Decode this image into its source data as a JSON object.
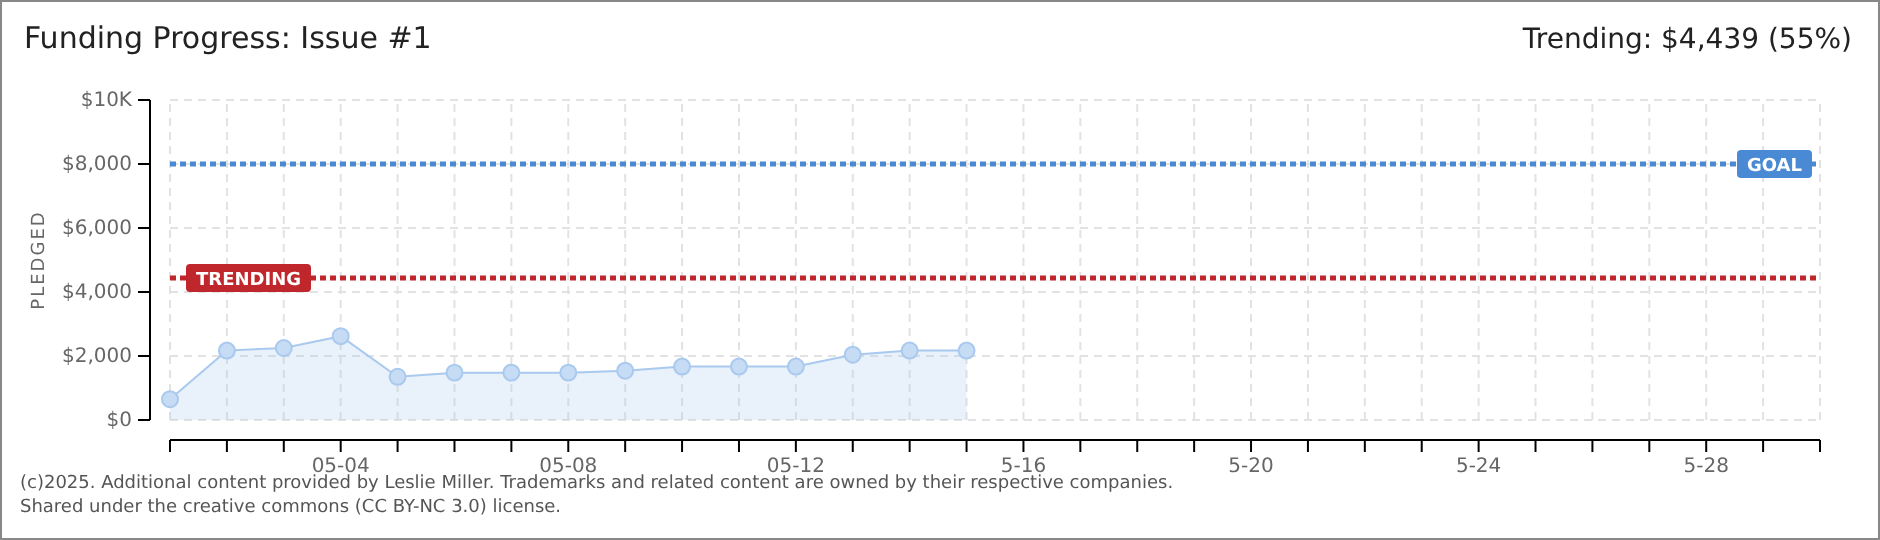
{
  "chart_data": {
    "type": "area",
    "title": "Funding Progress: Issue #1",
    "subtitle": "Trending: $4,439 (55%)",
    "ylabel": "PLEDGED",
    "x": [
      "2025-05-01",
      "2025-05-02",
      "2025-05-03",
      "2025-05-04",
      "2025-05-05",
      "2025-05-06",
      "2025-05-07",
      "2025-05-08",
      "2025-05-09",
      "2025-05-10",
      "2025-05-11",
      "2025-05-12",
      "2025-05-13",
      "2025-05-14",
      "2025-05-15"
    ],
    "series": [
      {
        "color": "#a9c9ee",
        "values": [
          650,
          2170,
          2250,
          2620,
          1350,
          1480,
          1480,
          1480,
          1540,
          1670,
          1670,
          1670,
          2040,
          2170,
          2170
        ]
      }
    ],
    "xlim": [
      "2025-05-01",
      "2025-05-30"
    ],
    "xticks": [
      {
        "value": "2025-05-01",
        "label": null
      },
      {
        "value": "2025-05-02",
        "label": null
      },
      {
        "value": "2025-05-03",
        "label": null
      },
      {
        "value": "2025-05-04",
        "label": "05-04"
      },
      {
        "value": "2025-05-05",
        "label": null
      },
      {
        "value": "2025-05-06",
        "label": null
      },
      {
        "value": "2025-05-07",
        "label": null
      },
      {
        "value": "2025-05-08",
        "label": "05-08"
      },
      {
        "value": "2025-05-09",
        "label": null
      },
      {
        "value": "2025-05-10",
        "label": null
      },
      {
        "value": "2025-05-11",
        "label": null
      },
      {
        "value": "2025-05-12",
        "label": "05-12"
      },
      {
        "value": "2025-05-13",
        "label": null
      },
      {
        "value": "2025-05-14",
        "label": null
      },
      {
        "value": "2025-05-15",
        "label": null
      },
      {
        "value": "2025-05-16",
        "label": "5-16"
      },
      {
        "value": "2025-05-17",
        "label": null
      },
      {
        "value": "2025-05-18",
        "label": null
      },
      {
        "value": "2025-05-19",
        "label": null
      },
      {
        "value": "2025-05-20",
        "label": "5-20"
      },
      {
        "value": "2025-05-21",
        "label": null
      },
      {
        "value": "2025-05-22",
        "label": null
      },
      {
        "value": "2025-05-23",
        "label": null
      },
      {
        "value": "2025-05-24",
        "label": "5-24"
      },
      {
        "value": "2025-05-25",
        "label": null
      },
      {
        "value": "2025-05-26",
        "label": null
      },
      {
        "value": "2025-05-27",
        "label": null
      },
      {
        "value": "2025-05-28",
        "label": "5-28"
      },
      {
        "value": "2025-05-29",
        "label": null
      },
      {
        "value": "2025-05-30",
        "label": null
      }
    ],
    "ylim": [
      0,
      10000
    ],
    "yticks": [
      {
        "value": 0,
        "label": "$0"
      },
      {
        "value": 2000,
        "label": "$2,000"
      },
      {
        "value": 4000,
        "label": "$4,000"
      },
      {
        "value": 6000,
        "label": "$6,000"
      },
      {
        "value": 8000,
        "label": "$8,000"
      },
      {
        "value": 10000,
        "label": "$10K"
      }
    ],
    "grid": true,
    "marker": "circle",
    "ref_lines": [
      {
        "axis": "y",
        "value": 8000,
        "label": "GOAL",
        "color": "#4a8ad4",
        "line_style": "dotted"
      },
      {
        "axis": "y",
        "value": 4439,
        "label": "TRENDING",
        "color": "#c0272d",
        "line_style": "dotted"
      }
    ],
    "annotations": [
      "(c)2025. Additional content provided by Leslie Miller. Trademarks and related content are owned by their respective companies.",
      "Shared under the creative commons (CC BY-NC 3.0) license."
    ]
  }
}
